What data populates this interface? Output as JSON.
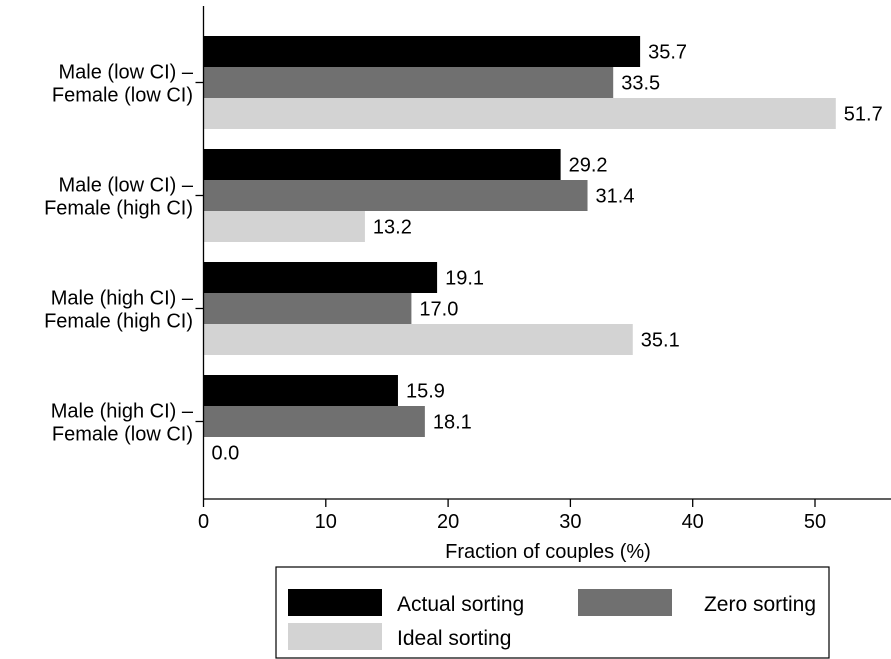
{
  "chart_data": {
    "type": "bar",
    "orientation": "horizontal",
    "xlabel": "Fraction of couples (%)",
    "ylabel": "",
    "xlim": [
      0,
      56
    ],
    "xticks": [
      0,
      10,
      20,
      30,
      40,
      50
    ],
    "grid": false,
    "legend_position": "bottom",
    "categories": [
      [
        "Male (low CI) –",
        "Female (low CI)"
      ],
      [
        "Male (low CI) –",
        "Female (high CI)"
      ],
      [
        "Male (high CI) –",
        "Female (high CI)"
      ],
      [
        "Male (high CI) –",
        "Female (low CI)"
      ]
    ],
    "series": [
      {
        "name": "Actual sorting",
        "color": "#000000",
        "values": [
          35.7,
          29.2,
          19.1,
          15.9
        ],
        "labels": [
          "35.7",
          "29.2",
          "19.1",
          "15.9"
        ]
      },
      {
        "name": "Zero sorting",
        "color": "#707070",
        "values": [
          33.5,
          31.4,
          17.0,
          18.1
        ],
        "labels": [
          "33.5",
          "31.4",
          "17.0",
          "18.1"
        ]
      },
      {
        "name": "Ideal sorting",
        "color": "#d3d3d3",
        "values": [
          51.7,
          13.2,
          35.1,
          0.0
        ],
        "labels": [
          "51.7",
          "13.2",
          "35.1",
          "0.0"
        ]
      }
    ]
  }
}
